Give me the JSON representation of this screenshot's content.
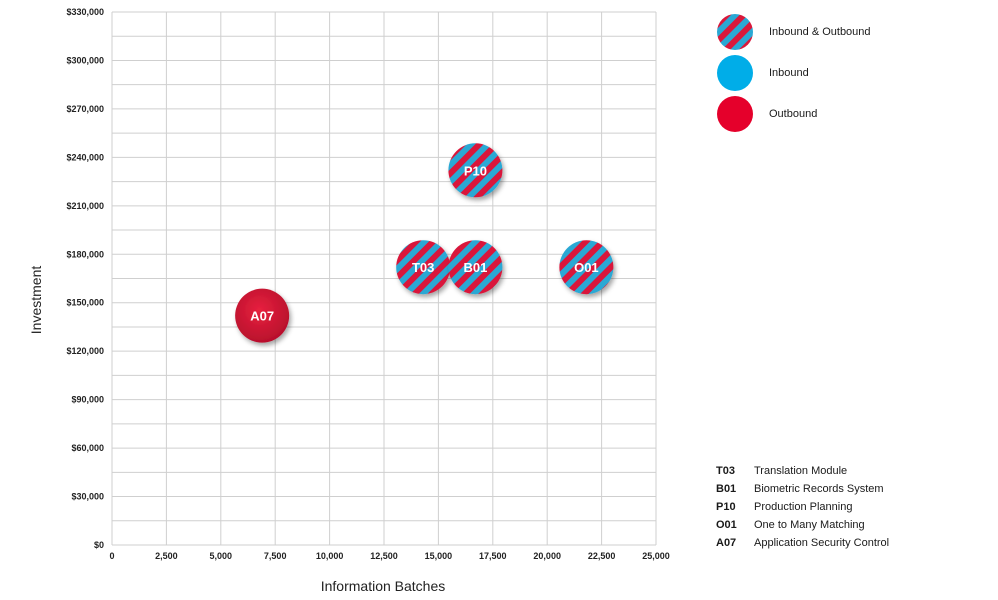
{
  "chart_data": {
    "type": "scatter",
    "xlabel": "Information Batches",
    "ylabel": "Investment",
    "xlim": [
      0,
      25000
    ],
    "ylim": [
      0,
      330000
    ],
    "grid": true,
    "xticks": [
      "0",
      "2,500",
      "5,000",
      "7,500",
      "10,000",
      "12,500",
      "15,000",
      "17,500",
      "20,000",
      "22,500",
      "25,000"
    ],
    "yticks": [
      "$0",
      "$30,000",
      "$60,000",
      "$90,000",
      "$120,000",
      "$150,000",
      "$180,000",
      "$210,000",
      "$240,000",
      "$270,000",
      "$300,000",
      "$330,000"
    ],
    "points": [
      {
        "code": "P10",
        "x": 16700,
        "y": 232000,
        "category": "Inbound & Outbound"
      },
      {
        "code": "T03",
        "x": 14300,
        "y": 172000,
        "category": "Inbound & Outbound"
      },
      {
        "code": "B01",
        "x": 16700,
        "y": 172000,
        "category": "Inbound & Outbound"
      },
      {
        "code": "O01",
        "x": 21800,
        "y": 172000,
        "category": "Inbound & Outbound"
      },
      {
        "code": "A07",
        "x": 6900,
        "y": 142000,
        "category": "Outbound"
      }
    ]
  },
  "legend": [
    {
      "label": "Inbound & Outbound",
      "style": "striped",
      "colors": [
        "#d9183b",
        "#2aa8d4"
      ]
    },
    {
      "label": "Inbound",
      "style": "solid",
      "colors": [
        "#00ade8"
      ]
    },
    {
      "label": "Outbound",
      "style": "solid",
      "colors": [
        "#e5002b"
      ]
    }
  ],
  "codes": [
    {
      "code": "T03",
      "name": "Translation Module"
    },
    {
      "code": "B01",
      "name": "Biometric Records System"
    },
    {
      "code": "P10",
      "name": "Production Planning"
    },
    {
      "code": "O01",
      "name": "One to Many Matching"
    },
    {
      "code": "A07",
      "name": "Application Security Control"
    }
  ]
}
